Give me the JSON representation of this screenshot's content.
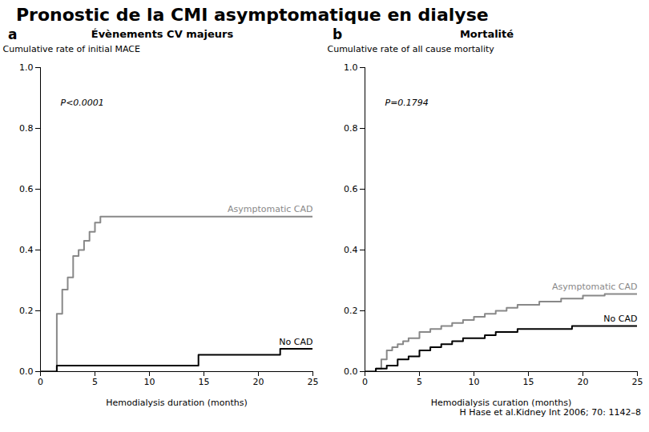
{
  "title": "Pronostic de la CMI asymptomatique en dialyse",
  "annotations": [
    "H Hase et al.Kidney Int 2006; 70: 1142–8"
  ],
  "chart_data": [
    {
      "type": "step",
      "label": "a",
      "title": "Évènements CV majeurs",
      "xlabel": "Hemodialysis duration (months)",
      "ylabel": "Cumulative rate of initial MACE",
      "xlim": [
        0,
        25
      ],
      "ylim": [
        0,
        1.0
      ],
      "xticks": [
        0,
        5,
        10,
        15,
        20,
        25
      ],
      "yticks": [
        {
          "value": 0,
          "label": "0.0"
        },
        {
          "value": 0.2,
          "label": "0.2"
        },
        {
          "value": 0.4,
          "label": "0.4"
        },
        {
          "value": 0.6,
          "label": "0.6"
        },
        {
          "value": 0.8,
          "label": "0.8"
        },
        {
          "value": 1,
          "label": "1.0"
        }
      ],
      "annotations": [
        "P<0.0001"
      ],
      "series": [
        {
          "name": "Asymptomatic CAD",
          "color": "#888888",
          "x": [
            0,
            1.5,
            2.0,
            2.5,
            3.0,
            3.5,
            4.0,
            4.5,
            5.0,
            5.5,
            6.0,
            7.0,
            25
          ],
          "values": [
            0,
            0.19,
            0.27,
            0.31,
            0.38,
            0.4,
            0.43,
            0.46,
            0.49,
            0.51,
            0.51,
            0.51,
            0.51
          ]
        },
        {
          "name": "No CAD",
          "color": "#000000",
          "x": [
            0,
            1.5,
            14.0,
            14.5,
            21.5,
            22.0,
            25
          ],
          "values": [
            0,
            0.02,
            0.02,
            0.055,
            0.055,
            0.075,
            0.075
          ]
        }
      ]
    },
    {
      "type": "step",
      "label": "b",
      "title": "Mortalité",
      "xlabel": "Hemodialysis curation (months)",
      "ylabel": "Cumulative rate of all cause mortality",
      "xlim": [
        0,
        25
      ],
      "ylim": [
        0,
        1.0
      ],
      "xticks": [
        0,
        5,
        10,
        15,
        20,
        25
      ],
      "yticks": [
        {
          "value": 0,
          "label": "0.0"
        },
        {
          "value": 0.2,
          "label": "0.2"
        },
        {
          "value": 0.4,
          "label": "0.4"
        },
        {
          "value": 0.6,
          "label": "0.6"
        },
        {
          "value": 0.8,
          "label": "0.8"
        },
        {
          "value": 1,
          "label": "1.0"
        }
      ],
      "annotations": [
        "P=0.1794"
      ],
      "series": [
        {
          "name": "Asymptomatic CAD",
          "color": "#888888",
          "x": [
            0,
            1.0,
            1.5,
            2.0,
            2.5,
            3.0,
            3.5,
            4.0,
            5.0,
            6.0,
            7.0,
            8.0,
            9.0,
            10.0,
            11.0,
            12.0,
            13.0,
            14.0,
            15.0,
            16.0,
            17.0,
            18.0,
            19.0,
            20.0,
            21.0,
            22.0,
            23.0,
            24.0,
            25.0
          ],
          "values": [
            0,
            0.01,
            0.04,
            0.07,
            0.08,
            0.09,
            0.1,
            0.11,
            0.13,
            0.14,
            0.15,
            0.16,
            0.17,
            0.18,
            0.19,
            0.2,
            0.21,
            0.22,
            0.22,
            0.23,
            0.23,
            0.24,
            0.24,
            0.25,
            0.25,
            0.255,
            0.255,
            0.255,
            0.255
          ]
        },
        {
          "name": "No CAD",
          "color": "#000000",
          "x": [
            0,
            1.0,
            2.0,
            3.0,
            4.0,
            5.0,
            6.0,
            7.0,
            8.0,
            9.0,
            10.0,
            11.0,
            12.0,
            13.0,
            14.0,
            15.0,
            16.0,
            17.0,
            18.0,
            19.0,
            20.0,
            21.0,
            22.0,
            23.0,
            24.0,
            25.0
          ],
          "values": [
            0,
            0.01,
            0.02,
            0.04,
            0.05,
            0.07,
            0.08,
            0.09,
            0.1,
            0.11,
            0.11,
            0.12,
            0.13,
            0.13,
            0.14,
            0.14,
            0.14,
            0.14,
            0.14,
            0.15,
            0.15,
            0.15,
            0.15,
            0.15,
            0.15,
            0.15
          ]
        }
      ]
    }
  ]
}
